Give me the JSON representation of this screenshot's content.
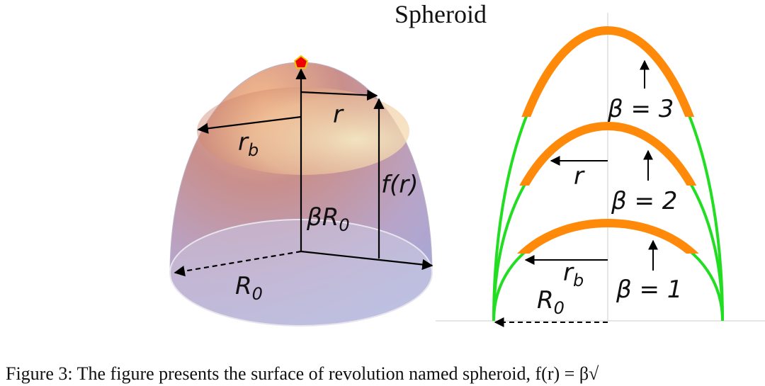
{
  "title": "Spheroid",
  "left_labels": {
    "r": "r",
    "r_b": {
      "base": "r",
      "sub": "b"
    },
    "f_r": "f(r)",
    "beta_R0": {
      "base": "βR",
      "sub": "0"
    },
    "R0": {
      "base": "R",
      "sub": "0"
    }
  },
  "right_labels": {
    "beta_3": "β = 3",
    "beta_2": "β = 2",
    "beta_1": "β = 1",
    "r": "r",
    "r_b": {
      "base": "r",
      "sub": "b"
    },
    "R0": {
      "base": "R",
      "sub": "0"
    }
  },
  "caption": "Figure 3: The figure presents the surface of revolution named spheroid, f(r) = β√"
}
